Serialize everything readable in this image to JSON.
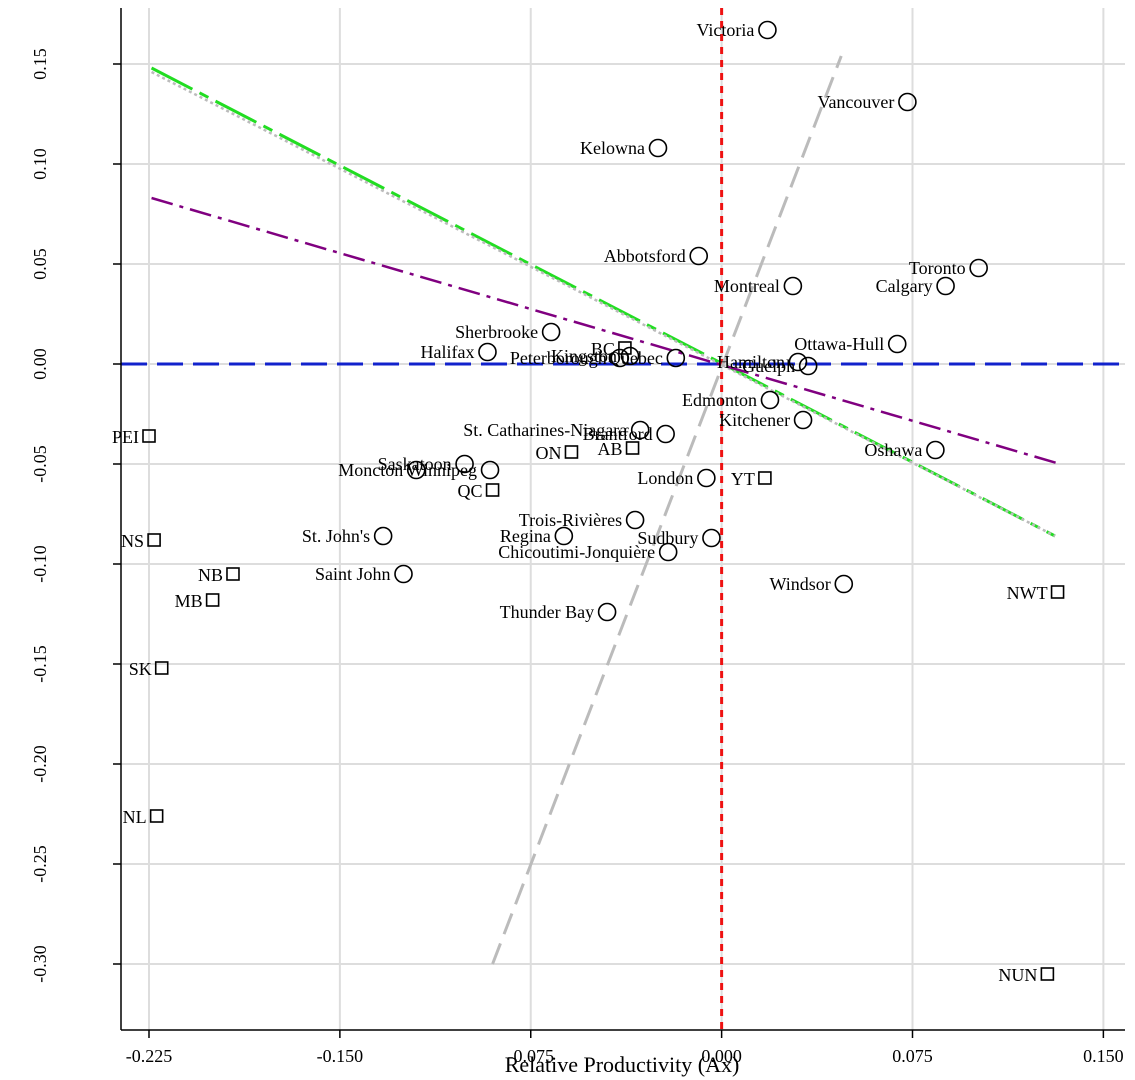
{
  "chart_data": {
    "type": "scatter",
    "title": "",
    "xlabel": "Relative Productivity (Ax)",
    "ylabel": "",
    "xlim": [
      -0.235,
      0.155
    ],
    "ylim": [
      -0.32,
      0.175
    ],
    "x_ticks": [
      -0.225,
      -0.15,
      -0.075,
      0.0,
      0.075,
      0.15
    ],
    "x_tick_labels": [
      "-0.225",
      "-0.150",
      "-0.075",
      "0.000",
      "0.075",
      "0.150"
    ],
    "y_ticks": [
      0.15,
      0.1,
      0.05,
      0.0,
      -0.05,
      -0.1,
      -0.15,
      -0.2,
      -0.25,
      -0.3
    ],
    "y_tick_labels": [
      "0.15",
      "0.10",
      "0.05",
      "0.00",
      "-0.05",
      "-0.10",
      "-0.15",
      "-0.20",
      "-0.25",
      "-0.30"
    ],
    "grid": true,
    "colors": {
      "grid": "#dddddd",
      "vline": "#ee1111",
      "hline": "#1122cc",
      "green_line": "#22dd22",
      "purple_line": "#800080",
      "gray_line": "#bbbbbb"
    },
    "cities": [
      {
        "label": "Victoria",
        "x": 0.018,
        "y": 0.167
      },
      {
        "label": "Vancouver",
        "x": 0.073,
        "y": 0.131
      },
      {
        "label": "Kelowna",
        "x": -0.025,
        "y": 0.108
      },
      {
        "label": "Abbotsford",
        "x": -0.009,
        "y": 0.054
      },
      {
        "label": "Toronto",
        "x": 0.101,
        "y": 0.048
      },
      {
        "label": "Montreal",
        "x": 0.028,
        "y": 0.039
      },
      {
        "label": "Calgary",
        "x": 0.088,
        "y": 0.039
      },
      {
        "label": "Sherbrooke",
        "x": -0.067,
        "y": 0.016
      },
      {
        "label": "Ottawa-Hull",
        "x": 0.069,
        "y": 0.01
      },
      {
        "label": "Halifax",
        "x": -0.092,
        "y": 0.006
      },
      {
        "label": "Peterborough",
        "x": -0.04,
        "y": 0.003
      },
      {
        "label": "Kingston",
        "x": -0.036,
        "y": 0.004
      },
      {
        "label": "Quebec",
        "x": -0.018,
        "y": 0.003
      },
      {
        "label": "Hamilton",
        "x": 0.03,
        "y": 0.001
      },
      {
        "label": "Guelph",
        "x": 0.034,
        "y": -0.001
      },
      {
        "label": "Edmonton",
        "x": 0.019,
        "y": -0.018
      },
      {
        "label": "Kitchener",
        "x": 0.032,
        "y": -0.028
      },
      {
        "label": "St. Catharines-Niagara",
        "x": -0.032,
        "y": -0.033
      },
      {
        "label": "Brantford",
        "x": -0.022,
        "y": -0.035
      },
      {
        "label": "Oshawa",
        "x": 0.084,
        "y": -0.043
      },
      {
        "label": "Saskatoon",
        "x": -0.101,
        "y": -0.05
      },
      {
        "label": "Winnipeg",
        "x": -0.091,
        "y": -0.053
      },
      {
        "label": "Moncton",
        "x": -0.12,
        "y": -0.053
      },
      {
        "label": "London",
        "x": -0.006,
        "y": -0.057
      },
      {
        "label": "Trois-Rivières",
        "x": -0.034,
        "y": -0.078
      },
      {
        "label": "St. John's",
        "x": -0.133,
        "y": -0.086
      },
      {
        "label": "Regina",
        "x": -0.062,
        "y": -0.086
      },
      {
        "label": "Sudbury",
        "x": -0.004,
        "y": -0.087
      },
      {
        "label": "Chicoutimi-Jonquière",
        "x": -0.021,
        "y": -0.094
      },
      {
        "label": "Saint John",
        "x": -0.125,
        "y": -0.105
      },
      {
        "label": "Windsor",
        "x": 0.048,
        "y": -0.11
      },
      {
        "label": "Thunder Bay",
        "x": -0.045,
        "y": -0.124
      }
    ],
    "provinces": [
      {
        "label": "PEI",
        "x": -0.225,
        "y": -0.036
      },
      {
        "label": "ON",
        "x": -0.059,
        "y": -0.044
      },
      {
        "label": "AB",
        "x": -0.035,
        "y": -0.042
      },
      {
        "label": "BC",
        "x": -0.038,
        "y": 0.008
      },
      {
        "label": "QC",
        "x": -0.09,
        "y": -0.063
      },
      {
        "label": "YT",
        "x": 0.017,
        "y": -0.057
      },
      {
        "label": "NS",
        "x": -0.223,
        "y": -0.088
      },
      {
        "label": "NB",
        "x": -0.192,
        "y": -0.105
      },
      {
        "label": "MB",
        "x": -0.2,
        "y": -0.118
      },
      {
        "label": "NWT",
        "x": 0.132,
        "y": -0.114
      },
      {
        "label": "SK",
        "x": -0.22,
        "y": -0.152
      },
      {
        "label": "NL",
        "x": -0.222,
        "y": -0.226
      },
      {
        "label": "NUN",
        "x": 0.128,
        "y": -0.305
      }
    ],
    "reference_lines": [
      {
        "x1": -0.224,
        "y1": 0.148,
        "x2": 0.131,
        "y2": -0.086,
        "style": "green-long-dash"
      },
      {
        "x1": -0.224,
        "y1": 0.146,
        "x2": 0.131,
        "y2": -0.086,
        "style": "gray-dotted"
      },
      {
        "x1": -0.224,
        "y1": 0.083,
        "x2": 0.133,
        "y2": -0.05,
        "style": "purple-dash-dot"
      },
      {
        "x1": -0.09,
        "y1": -0.3,
        "x2": 0.047,
        "y2": 0.154,
        "style": "gray-dashed"
      }
    ]
  }
}
